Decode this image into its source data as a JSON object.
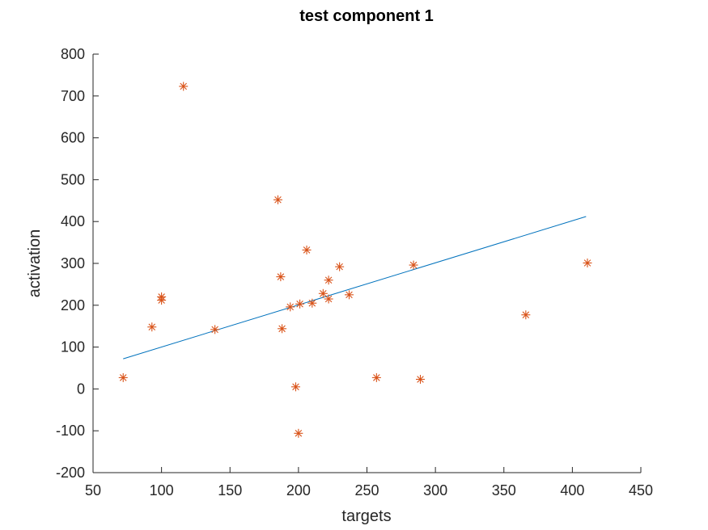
{
  "chart_data": {
    "type": "scatter",
    "title": "test component 1",
    "xlabel": "targets",
    "ylabel": "activation",
    "xlim": [
      50,
      450
    ],
    "ylim": [
      -200,
      800
    ],
    "xticks": [
      50,
      100,
      150,
      200,
      250,
      300,
      350,
      400,
      450
    ],
    "yticks": [
      -200,
      -100,
      0,
      100,
      200,
      300,
      400,
      500,
      600,
      700,
      800
    ],
    "grid": false,
    "marker": "asterisk",
    "colors": {
      "points": "#d95319",
      "fit_line": "#0072bd",
      "axis": "#262626"
    },
    "series": [
      {
        "values": [
          [
            72,
            27
          ],
          [
            93,
            148
          ],
          [
            100,
            220
          ],
          [
            100,
            212
          ],
          [
            116,
            723
          ],
          [
            139,
            142
          ],
          [
            185,
            452
          ],
          [
            187,
            268
          ],
          [
            188,
            144
          ],
          [
            194,
            196
          ],
          [
            198,
            5
          ],
          [
            200,
            -106
          ],
          [
            201,
            203
          ],
          [
            206,
            332
          ],
          [
            210,
            205
          ],
          [
            218,
            228
          ],
          [
            222,
            260
          ],
          [
            222,
            215
          ],
          [
            230,
            292
          ],
          [
            237,
            225
          ],
          [
            257,
            27
          ],
          [
            284,
            296
          ],
          [
            289,
            23
          ],
          [
            366,
            177
          ],
          [
            411,
            301
          ]
        ]
      }
    ],
    "fit_line": {
      "x": [
        72,
        410
      ],
      "y": [
        72,
        412
      ]
    }
  }
}
